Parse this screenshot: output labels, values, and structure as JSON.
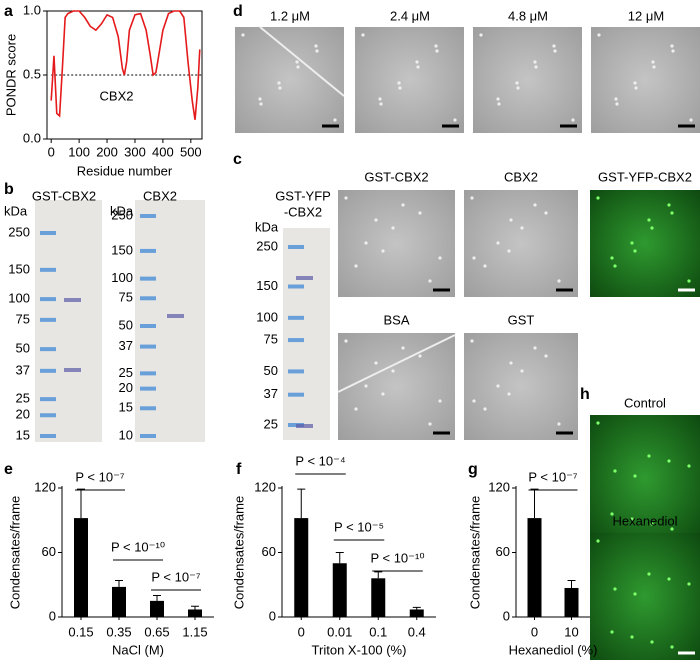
{
  "panel_labels": [
    "a",
    "b",
    "c",
    "d",
    "e",
    "f",
    "g",
    "h"
  ],
  "chart_data": [
    {
      "type": "line",
      "xlabel": "Residue number",
      "ylabel": "PONDR score",
      "x": [
        0,
        10,
        20,
        30,
        40,
        50,
        60,
        80,
        100,
        120,
        140,
        160,
        180,
        200,
        220,
        240,
        255,
        262,
        270,
        280,
        300,
        320,
        340,
        355,
        365,
        375,
        385,
        400,
        420,
        440,
        460,
        475,
        490,
        505,
        515,
        525,
        532
      ],
      "series": [
        {
          "name": "CBX2",
          "color": "#e41a1c",
          "values": [
            0.3,
            0.65,
            0.2,
            0.18,
            0.55,
            0.95,
            0.98,
            1.0,
            1.0,
            0.95,
            0.88,
            0.85,
            0.9,
            0.97,
            0.95,
            0.8,
            0.55,
            0.5,
            0.6,
            0.85,
            0.97,
            0.98,
            0.85,
            0.65,
            0.5,
            0.52,
            0.65,
            0.85,
            0.98,
            1.0,
            1.0,
            0.95,
            0.6,
            0.3,
            0.15,
            0.4,
            0.7
          ]
        }
      ],
      "threshold": 0.5,
      "xlim": [
        -15,
        540
      ],
      "xticks": [
        0,
        100,
        200,
        300,
        400,
        500
      ],
      "ylim": [
        0,
        1
      ],
      "yticks": [
        {
          "value": 0,
          "label": "0.0"
        },
        0.5,
        {
          "value": 1,
          "label": "1.0"
        }
      ]
    },
    {
      "type": "bar",
      "xlabel": "NaCl (M)",
      "ylabel": "Condensates/frame",
      "color": "#000000",
      "categories": [
        "0.15",
        "0.35",
        "0.65",
        "1.15"
      ],
      "values": [
        92,
        28,
        15,
        7
      ],
      "errors": [
        27,
        6,
        5,
        3
      ],
      "annotations": [
        "P < 10⁻⁷",
        "P < 10⁻¹⁰",
        "P < 10⁻⁷"
      ],
      "ylim": [
        0,
        120
      ],
      "yticks": [
        0,
        60,
        120
      ]
    },
    {
      "type": "bar",
      "xlabel": "Triton X-100 (%)",
      "ylabel": "Condensates/frame",
      "color": "#000000",
      "categories": [
        "0",
        "0.01",
        "0.1",
        "0.4"
      ],
      "values": [
        92,
        50,
        36,
        7
      ],
      "errors": [
        27,
        10,
        6,
        2
      ],
      "annotations": [
        "P < 10⁻⁴",
        "P < 10⁻⁵",
        "P < 10⁻¹⁰"
      ],
      "ylim": [
        0,
        120
      ],
      "yticks": [
        0,
        60,
        120
      ]
    },
    {
      "type": "bar",
      "xlabel": "Hexanediol (%)",
      "ylabel": "Condensates/frame",
      "color": "#000000",
      "categories": [
        "0",
        "10"
      ],
      "values": [
        92,
        27
      ],
      "errors": [
        27,
        7
      ],
      "annotations": [
        "P < 10⁻⁷"
      ],
      "ylim": [
        0,
        120
      ],
      "yticks": [
        0,
        60,
        120
      ]
    }
  ],
  "panel_b": {
    "gels": [
      {
        "title": [
          "GST-CBX2"
        ],
        "unit": "kDa",
        "markers": [
          250,
          150,
          100,
          75,
          50,
          37,
          25,
          20,
          15
        ]
      },
      {
        "title": [
          "CBX2"
        ],
        "unit": "kDa",
        "markers": [
          250,
          150,
          100,
          75,
          50,
          37,
          25,
          20,
          15,
          10
        ]
      },
      {
        "title": [
          "GST-YFP",
          "-CBX2"
        ],
        "unit": "kDa",
        "markers": [
          250,
          150,
          100,
          75,
          50,
          37,
          25
        ]
      }
    ]
  },
  "panel_c": {
    "labels": [
      "GST-CBX2",
      "CBX2",
      "GST-YFP-CBX2",
      "BSA",
      "GST"
    ]
  },
  "panel_d": {
    "labels": [
      "1.2 μM",
      "2.4 μM",
      "4.8 μM",
      "12 μM"
    ]
  },
  "panel_h": {
    "labels": [
      "Control",
      "Hexanediol"
    ]
  }
}
